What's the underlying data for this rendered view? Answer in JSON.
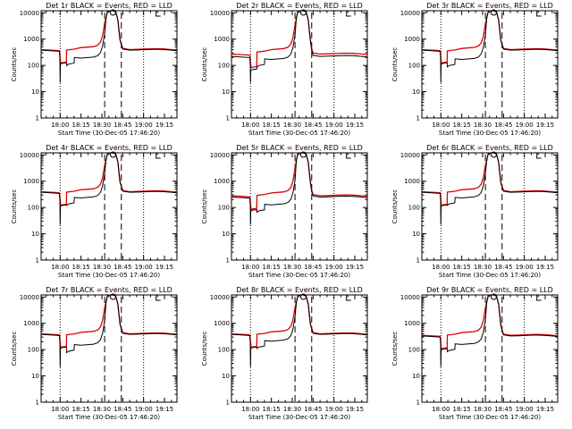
{
  "chart_data": {
    "type": "line",
    "layout": "3x3 grid",
    "ylabel": "Counts/sec",
    "xlabel": "Start Time (30-Dec-05 17:46:20)",
    "y_scale": "log",
    "ylim": [
      1,
      12000
    ],
    "y_ticks": [
      1,
      10,
      100,
      1000,
      10000
    ],
    "x_tick_labels": [
      "18:00",
      "18:15",
      "18:30",
      "18:45",
      "19:00",
      "19:15"
    ],
    "x_tick_minutes": [
      60,
      75,
      90,
      105,
      120,
      135
    ],
    "xlim_minutes": [
      46.3,
      144
    ],
    "dotted_verticals_minutes": [
      60,
      120
    ],
    "dashed_verticals_minutes": [
      92,
      104
    ],
    "series_colors": {
      "events": "#000000",
      "lld": "#e00000"
    },
    "panels": [
      {
        "title": "Det 1r BLACK = Events, RED = LLD",
        "base_events": 380,
        "base_lld": 400,
        "peak": 12000,
        "step_events": 180,
        "step_lld": 450
      },
      {
        "title": "Det 2r BLACK = Events, RED = LLD",
        "base_events": 220,
        "base_lld": 270,
        "peak": 12000,
        "step_events": 160,
        "step_lld": 380
      },
      {
        "title": "Det 3r BLACK = Events, RED = LLD",
        "base_events": 380,
        "base_lld": 400,
        "peak": 12000,
        "step_events": 160,
        "step_lld": 420
      },
      {
        "title": "Det 4r BLACK = Events, RED = LLD",
        "base_events": 380,
        "base_lld": 400,
        "peak": 12000,
        "step_events": 220,
        "step_lld": 450
      },
      {
        "title": "Det 5r BLACK = Events, RED = LLD",
        "base_events": 250,
        "base_lld": 280,
        "peak": 12000,
        "step_events": 120,
        "step_lld": 340
      },
      {
        "title": "Det 6r BLACK = Events, RED = LLD",
        "base_events": 380,
        "base_lld": 400,
        "peak": 12000,
        "step_events": 220,
        "step_lld": 450
      },
      {
        "title": "Det 7r BLACK = Events, RED = LLD",
        "base_events": 380,
        "base_lld": 400,
        "peak": 12000,
        "step_events": 140,
        "step_lld": 430
      },
      {
        "title": "Det 8r BLACK = Events, RED = LLD",
        "base_events": 380,
        "base_lld": 400,
        "peak": 12000,
        "step_events": 200,
        "step_lld": 450
      },
      {
        "title": "Det 9r BLACK = Events, RED = LLD",
        "base_events": 330,
        "base_lld": 350,
        "peak": 12000,
        "step_events": 150,
        "step_lld": 420
      }
    ]
  }
}
